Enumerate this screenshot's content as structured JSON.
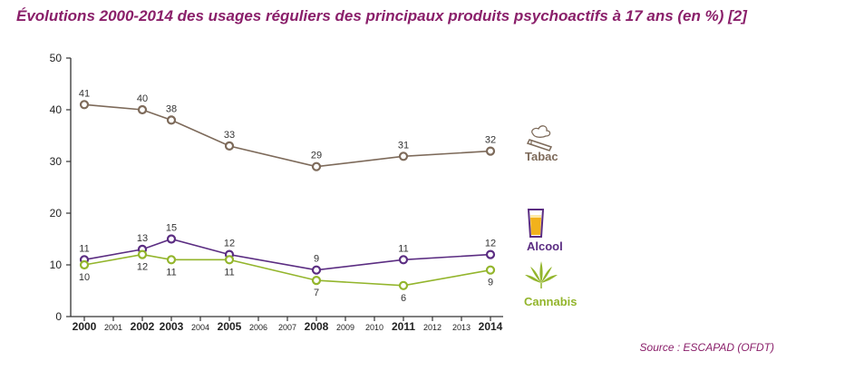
{
  "title": "Évolutions 2000-2014 des usages réguliers des principaux produits psychoactifs à 17 ans (en %) [2]",
  "source": "Source : ESCAPAD (OFDT)",
  "colors": {
    "tabac": "#7d6a5a",
    "alcool": "#5b2d82",
    "cannabis": "#93b52c",
    "title": "#8a1f6a",
    "axis": "#333333"
  },
  "chart_data": {
    "type": "line",
    "title": "Évolutions 2000-2014 des usages réguliers des principaux produits psychoactifs à 17 ans (en %) [2]",
    "x_ticks": [
      2000,
      2001,
      2002,
      2003,
      2004,
      2005,
      2006,
      2007,
      2008,
      2009,
      2010,
      2011,
      2012,
      2013,
      2014
    ],
    "bold_ticks": [
      2000,
      2002,
      2003,
      2005,
      2008,
      2011,
      2014
    ],
    "xlim": [
      2000,
      2014
    ],
    "ylim": [
      0,
      50
    ],
    "y_ticks": [
      0,
      10,
      20,
      30,
      40,
      50
    ],
    "grid": false,
    "legend_placement": "right",
    "series": [
      {
        "key": "tabac",
        "name": "Tabac",
        "x": [
          2000,
          2002,
          2003,
          2005,
          2008,
          2011,
          2014
        ],
        "values": [
          41,
          40,
          38,
          33,
          29,
          31,
          32
        ],
        "labels": [
          "41",
          "40",
          "38",
          "33",
          "29",
          "31",
          "32"
        ],
        "label_pos": "above",
        "icon": "cigarette-icon"
      },
      {
        "key": "alcool",
        "name": "Alcool",
        "x": [
          2000,
          2002,
          2003,
          2005,
          2008,
          2011,
          2014
        ],
        "values": [
          11,
          13,
          15,
          12,
          9,
          11,
          12
        ],
        "labels": [
          "11",
          "13",
          "15",
          "12",
          "9",
          "11",
          "12"
        ],
        "label_pos": "above",
        "icon": "beer-glass-icon"
      },
      {
        "key": "cannabis",
        "name": "Cannabis",
        "x": [
          2000,
          2002,
          2003,
          2005,
          2008,
          2011,
          2014
        ],
        "values": [
          10,
          12,
          11,
          11,
          7,
          6,
          9
        ],
        "labels": [
          "10",
          "12",
          "11",
          "11",
          "7",
          "6",
          "9"
        ],
        "label_pos": "below",
        "icon": "cannabis-leaf-icon"
      }
    ]
  }
}
